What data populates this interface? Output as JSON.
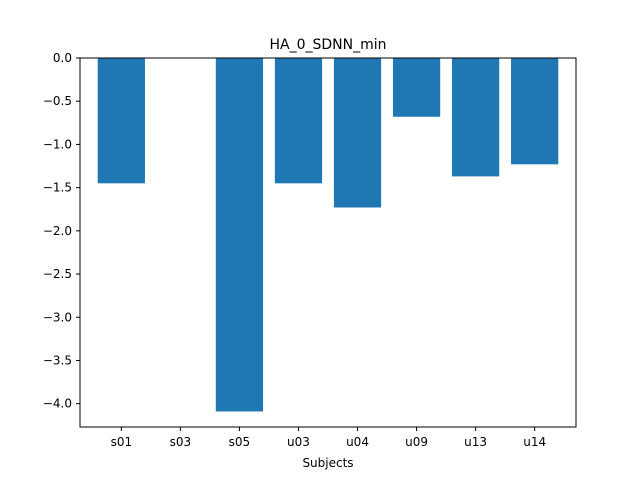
{
  "chart_data": {
    "type": "bar",
    "title": "HA_0_SDNN_min",
    "xlabel": "Subjects",
    "ylabel": "",
    "categories": [
      "s01",
      "s03",
      "s05",
      "u03",
      "u04",
      "u09",
      "u13",
      "u14"
    ],
    "values": [
      -1.45,
      0.0,
      -4.09,
      -1.45,
      -1.73,
      -0.68,
      -1.37,
      -1.23
    ],
    "ylim": [
      -4.27,
      0.0
    ],
    "yticks": [
      0.0,
      -0.5,
      -1.0,
      -1.5,
      -2.0,
      -2.5,
      -3.0,
      -3.5,
      -4.0
    ],
    "ytick_labels": [
      "0.0",
      "−0.5",
      "−1.0",
      "−1.5",
      "−2.0",
      "−2.5",
      "−3.0",
      "−3.5",
      "−4.0"
    ],
    "bar_color": "#1f77b4",
    "grid": false,
    "legend": "none"
  }
}
